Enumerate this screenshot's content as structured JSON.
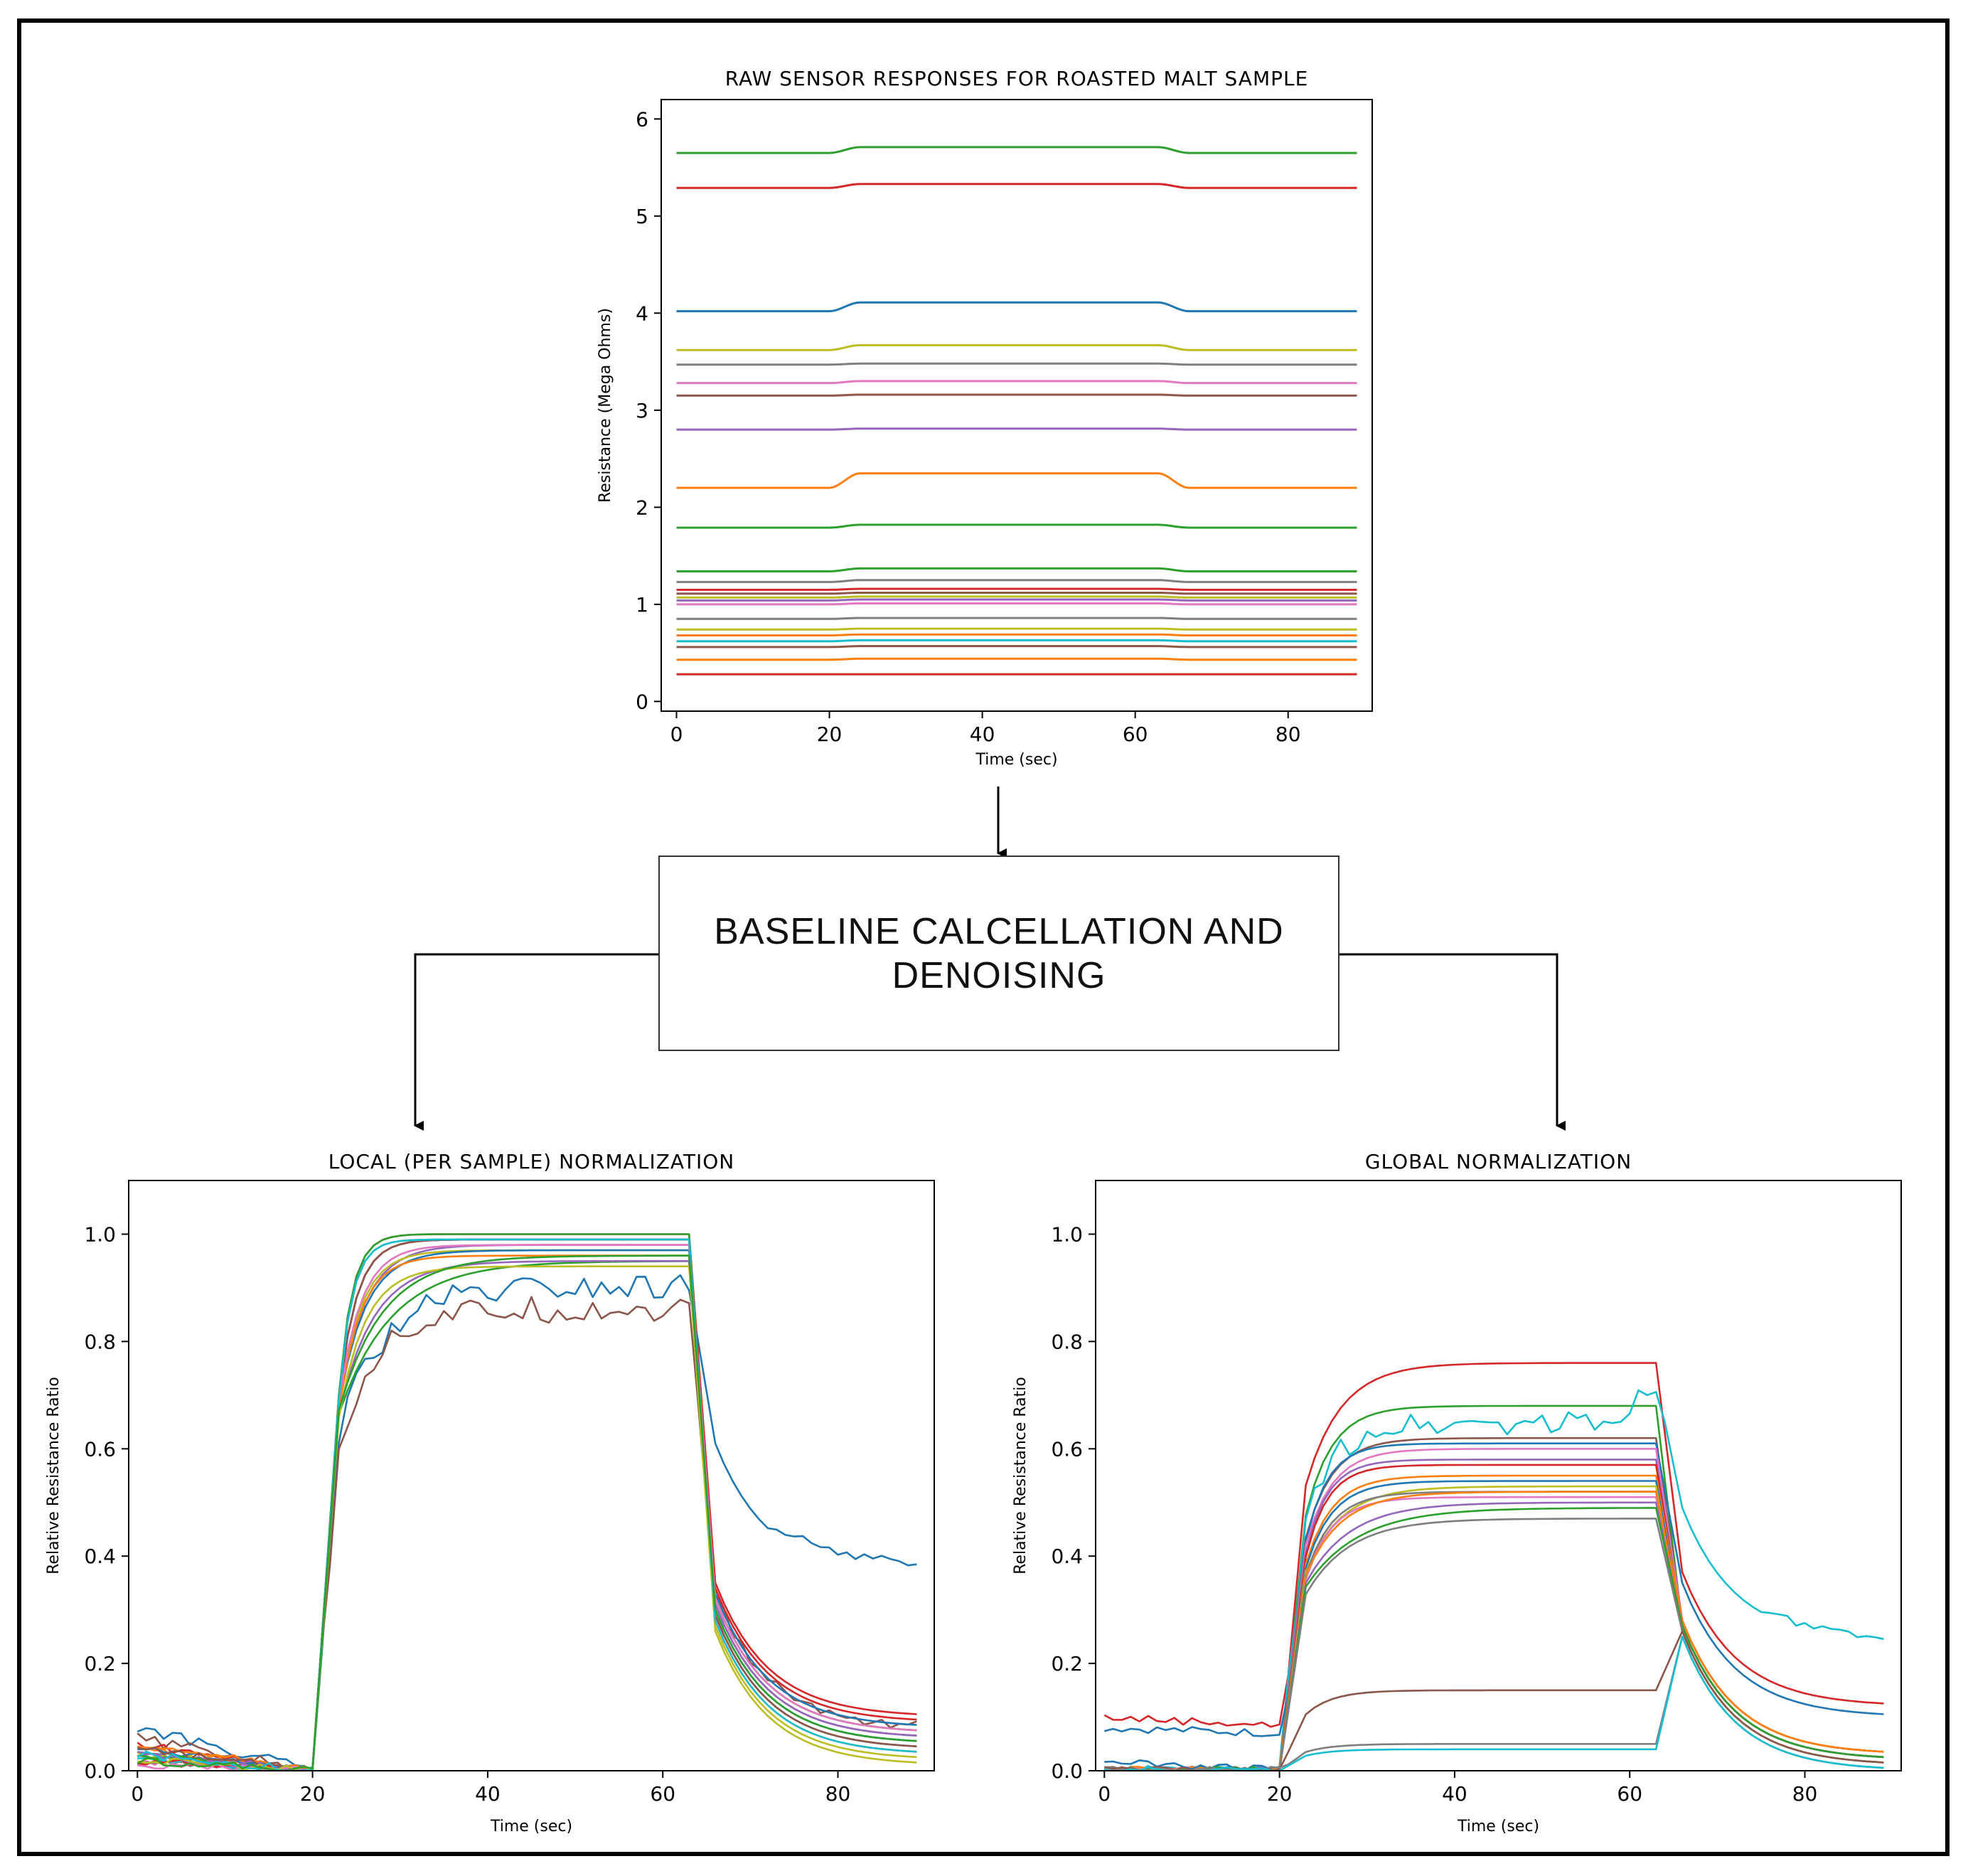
{
  "diagram": {
    "process_box": {
      "label": "BASELINE CALCELLATION AND\nDENOISING"
    }
  },
  "colors": {
    "palette": [
      "#1f77b4",
      "#ff7f0e",
      "#2ca02c",
      "#d62728",
      "#9467bd",
      "#8c564b",
      "#e377c2",
      "#7f7f7f",
      "#bcbd22",
      "#17becf"
    ]
  },
  "chart_data": [
    {
      "id": "raw",
      "type": "line",
      "title": "RAW SENSOR RESPONSES FOR ROASTED MALT SAMPLE",
      "xlabel": "Time (sec)",
      "ylabel": "Resistance (Mega Ohms)",
      "xlim": [
        -2,
        91
      ],
      "ylim": [
        -0.1,
        6.2
      ],
      "xticks": [
        0,
        20,
        40,
        60,
        80
      ],
      "yticks": [
        0,
        1,
        2,
        3,
        4,
        5,
        6
      ],
      "exposure": [
        20,
        63
      ],
      "series": [
        {
          "name": "s1",
          "color": "#2ca02c",
          "baseline": 5.65,
          "peak": 5.71
        },
        {
          "name": "s2",
          "color": "#d62728",
          "baseline": 5.29,
          "peak": 5.33
        },
        {
          "name": "s3",
          "color": "#1f77b4",
          "baseline": 4.02,
          "peak": 4.11
        },
        {
          "name": "s4",
          "color": "#bcbd22",
          "baseline": 3.62,
          "peak": 3.67
        },
        {
          "name": "s5",
          "color": "#7f7f7f",
          "baseline": 3.47,
          "peak": 3.48
        },
        {
          "name": "s6",
          "color": "#e377c2",
          "baseline": 3.28,
          "peak": 3.3
        },
        {
          "name": "s7",
          "color": "#8c564b",
          "baseline": 3.15,
          "peak": 3.16
        },
        {
          "name": "s8",
          "color": "#9467bd",
          "baseline": 2.8,
          "peak": 2.81
        },
        {
          "name": "s9",
          "color": "#ff7f0e",
          "baseline": 2.2,
          "peak": 2.35
        },
        {
          "name": "s10",
          "color": "#2ca02c",
          "baseline": 1.79,
          "peak": 1.82
        },
        {
          "name": "s11",
          "color": "#2ca02c",
          "baseline": 1.34,
          "peak": 1.37
        },
        {
          "name": "s12",
          "color": "#7f7f7f",
          "baseline": 1.23,
          "peak": 1.25
        },
        {
          "name": "s13",
          "color": "#d62728",
          "baseline": 1.15,
          "peak": 1.16
        },
        {
          "name": "s14",
          "color": "#8c564b",
          "baseline": 1.11,
          "peak": 1.12
        },
        {
          "name": "s15",
          "color": "#bcbd22",
          "baseline": 1.07,
          "peak": 1.08
        },
        {
          "name": "s16",
          "color": "#9467bd",
          "baseline": 1.04,
          "peak": 1.05
        },
        {
          "name": "s17",
          "color": "#e377c2",
          "baseline": 1.0,
          "peak": 1.01
        },
        {
          "name": "s18",
          "color": "#7f7f7f",
          "baseline": 0.85,
          "peak": 0.86
        },
        {
          "name": "s19",
          "color": "#bcbd22",
          "baseline": 0.74,
          "peak": 0.75
        },
        {
          "name": "s20",
          "color": "#ff7f0e",
          "baseline": 0.68,
          "peak": 0.69
        },
        {
          "name": "s21",
          "color": "#17becf",
          "baseline": 0.62,
          "peak": 0.63
        },
        {
          "name": "s22",
          "color": "#8c564b",
          "baseline": 0.56,
          "peak": 0.57
        },
        {
          "name": "s23",
          "color": "#ff7f0e",
          "baseline": 0.43,
          "peak": 0.44
        },
        {
          "name": "s24",
          "color": "#d62728",
          "baseline": 0.28,
          "peak": 0.28
        }
      ]
    },
    {
      "id": "local",
      "type": "line",
      "title": "LOCAL (PER SAMPLE) NORMALIZATION",
      "xlabel": "Time (sec)",
      "ylabel": "Relative Resistance Ratio",
      "xlim": [
        -1,
        91
      ],
      "ylim": [
        0,
        1.1
      ],
      "xticks": [
        0,
        20,
        40,
        60,
        80
      ],
      "yticks": [
        0.0,
        0.2,
        0.4,
        0.6,
        0.8,
        1.0
      ],
      "tick_labels_y": [
        "0.0",
        "0.2",
        "0.4",
        "0.6",
        "0.8",
        "1.0"
      ],
      "exposure": [
        20,
        63
      ],
      "series": [
        {
          "name": "s1",
          "color": "#1f77b4",
          "pre": 0.08,
          "plateau": 0.9,
          "rise": 5,
          "tail": 0.36,
          "noisy": true,
          "tailBump": 0.44
        },
        {
          "name": "s2",
          "color": "#8c564b",
          "pre": 0.06,
          "plateau": 0.86,
          "rise": 4,
          "tail": 0.08,
          "noisy": true
        },
        {
          "name": "s3",
          "color": "#2ca02c",
          "pre": 0.03,
          "plateau": 0.95,
          "rise": 6,
          "tail": 0.06
        },
        {
          "name": "s4",
          "color": "#d62728",
          "pre": 0.05,
          "plateau": 1.0,
          "rise": 1.5,
          "tail": 0.1
        },
        {
          "name": "s5",
          "color": "#ff7f0e",
          "pre": 0.04,
          "plateau": 0.99,
          "rise": 2,
          "tail": 0.07
        },
        {
          "name": "s6",
          "color": "#9467bd",
          "pre": 0.03,
          "plateau": 0.98,
          "rise": 3,
          "tail": 0.05
        },
        {
          "name": "s7",
          "color": "#e377c2",
          "pre": 0.02,
          "plateau": 0.99,
          "rise": 2,
          "tail": 0.06
        },
        {
          "name": "s8",
          "color": "#7f7f7f",
          "pre": 0.02,
          "plateau": 0.99,
          "rise": 1.5,
          "tail": 0.04
        },
        {
          "name": "s9",
          "color": "#bcbd22",
          "pre": 0.03,
          "plateau": 0.97,
          "rise": 2.5,
          "tail": 0.02
        },
        {
          "name": "s10",
          "color": "#17becf",
          "pre": 0.02,
          "plateau": 0.99,
          "rise": 2,
          "tail": 0.05
        },
        {
          "name": "s11",
          "color": "#1f77b4",
          "pre": 0.04,
          "plateau": 0.97,
          "rise": 3,
          "tail": 0.08
        },
        {
          "name": "s12",
          "color": "#2ca02c",
          "pre": 0.03,
          "plateau": 1.0,
          "rise": 1.5,
          "tail": 0.07
        },
        {
          "name": "s13",
          "color": "#ff7f0e",
          "pre": 0.05,
          "plateau": 0.96,
          "rise": 2.5,
          "tail": 0.03
        },
        {
          "name": "s14",
          "color": "#d62728",
          "pre": 0.02,
          "plateau": 0.99,
          "rise": 2,
          "tail": 0.09
        },
        {
          "name": "s15",
          "color": "#9467bd",
          "pre": 0.03,
          "plateau": 0.95,
          "rise": 4,
          "tail": 0.06
        },
        {
          "name": "s16",
          "color": "#8c564b",
          "pre": 0.04,
          "plateau": 0.99,
          "rise": 2,
          "tail": 0.04
        },
        {
          "name": "s17",
          "color": "#e377c2",
          "pre": 0.01,
          "plateau": 0.98,
          "rise": 2.5,
          "tail": 0.07
        },
        {
          "name": "s18",
          "color": "#bcbd22",
          "pre": 0.02,
          "plateau": 0.94,
          "rise": 3,
          "tail": 0.01
        },
        {
          "name": "s19",
          "color": "#17becf",
          "pre": 0.03,
          "plateau": 0.99,
          "rise": 1.5,
          "tail": 0.03
        },
        {
          "name": "s20",
          "color": "#2ca02c",
          "pre": 0.02,
          "plateau": 0.96,
          "rise": 5,
          "tail": 0.05
        }
      ]
    },
    {
      "id": "global",
      "type": "line",
      "title": "GLOBAL NORMALIZATION",
      "xlabel": "Time (sec)",
      "ylabel": "Relative Resistance Ratio",
      "xlim": [
        -1,
        91
      ],
      "ylim": [
        0,
        1.1
      ],
      "xticks": [
        0,
        20,
        40,
        60,
        80
      ],
      "yticks": [
        0.0,
        0.2,
        0.4,
        0.6,
        0.8,
        1.0
      ],
      "tick_labels_y": [
        "0.0",
        "0.2",
        "0.4",
        "0.6",
        "0.8",
        "1.0"
      ],
      "exposure": [
        20,
        63
      ],
      "series": [
        {
          "name": "s1",
          "color": "#d62728",
          "pre": 0.1,
          "preEnd": 0.085,
          "plateau": 0.76,
          "rise": 4,
          "tail": 0.12
        },
        {
          "name": "s2",
          "color": "#2ca02c",
          "pre": 0.0,
          "plateau": 0.68,
          "rise": 3,
          "tail": 0.02
        },
        {
          "name": "s3",
          "color": "#17becf",
          "pre": 0.0,
          "plateau": 0.65,
          "rise": 3,
          "tail": 0.24,
          "noisy": true,
          "tailBump": 0.3,
          "endRise": 0.73
        },
        {
          "name": "s4",
          "color": "#8c564b",
          "pre": 0.0,
          "plateau": 0.62,
          "rise": 3,
          "tail": 0.03
        },
        {
          "name": "s5",
          "color": "#1f77b4",
          "pre": 0.08,
          "preEnd": 0.07,
          "plateau": 0.61,
          "rise": 2.5,
          "tail": 0.1
        },
        {
          "name": "s6",
          "color": "#e377c2",
          "pre": 0.0,
          "plateau": 0.6,
          "rise": 3,
          "tail": 0.03
        },
        {
          "name": "s7",
          "color": "#9467bd",
          "pre": 0.0,
          "plateau": 0.58,
          "rise": 2.5,
          "tail": 0.02
        },
        {
          "name": "s8",
          "color": "#d62728",
          "pre": 0.0,
          "plateau": 0.57,
          "rise": 2.5,
          "tail": 0.02
        },
        {
          "name": "s9",
          "color": "#ff7f0e",
          "pre": 0.0,
          "plateau": 0.55,
          "rise": 3,
          "tail": 0.03
        },
        {
          "name": "s10",
          "color": "#1f77b4",
          "pre": 0.02,
          "plateau": 0.54,
          "rise": 3,
          "tail": 0.02
        },
        {
          "name": "s11",
          "color": "#bcbd22",
          "pre": 0.0,
          "plateau": 0.53,
          "rise": 4,
          "tail": 0.01
        },
        {
          "name": "s12",
          "color": "#7f7f7f",
          "pre": 0.0,
          "plateau": 0.52,
          "rise": 3,
          "tail": 0.02
        },
        {
          "name": "s13",
          "color": "#e377c2",
          "pre": 0.0,
          "plateau": 0.51,
          "rise": 3,
          "tail": 0.02
        },
        {
          "name": "s14",
          "color": "#ff7f0e",
          "pre": 0.0,
          "plateau": 0.52,
          "rise": 4,
          "tail": 0.03
        },
        {
          "name": "s15",
          "color": "#9467bd",
          "pre": 0.0,
          "plateau": 0.5,
          "rise": 5,
          "tail": 0.02
        },
        {
          "name": "s16",
          "color": "#2ca02c",
          "pre": 0.0,
          "plateau": 0.49,
          "rise": 6,
          "tail": 0.02
        },
        {
          "name": "s17",
          "color": "#7f7f7f",
          "pre": 0.0,
          "plateau": 0.47,
          "rise": 5,
          "tail": 0.01
        },
        {
          "name": "s18",
          "color": "#8c564b",
          "pre": 0.0,
          "plateau": 0.15,
          "rise": 3,
          "tail": 0.01
        },
        {
          "name": "s19",
          "color": "#7f7f7f",
          "pre": 0.0,
          "plateau": 0.05,
          "rise": 3,
          "tail": 0.0
        },
        {
          "name": "s20",
          "color": "#17becf",
          "pre": 0.0,
          "plateau": 0.04,
          "rise": 3,
          "tail": 0.0
        }
      ]
    }
  ]
}
